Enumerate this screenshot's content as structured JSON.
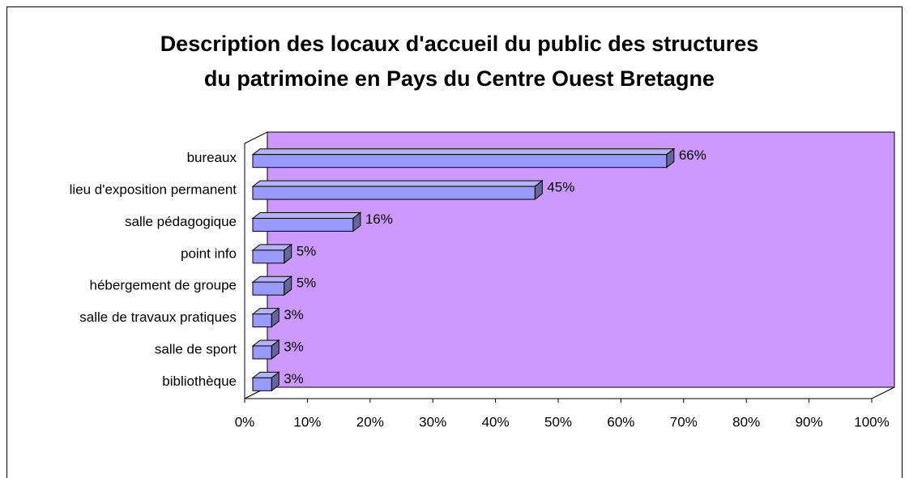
{
  "chart_data": {
    "type": "bar3d_horizontal",
    "title": [
      "Description des locaux d'accueil du public des structures",
      "du patrimoine en Pays du Centre Ouest Bretagne"
    ],
    "categories": [
      "bureaux",
      "lieu d'exposition permanent",
      "salle pédagogique",
      "point info",
      "hébergement de groupe",
      "salle de travaux pratiques",
      "salle de sport",
      "bibliothèque"
    ],
    "values": [
      66,
      45,
      16,
      5,
      5,
      3,
      3,
      3
    ],
    "value_labels": [
      "66%",
      "45%",
      "16%",
      "5%",
      "5%",
      "3%",
      "3%",
      "3%"
    ],
    "color": "#9999ff",
    "wall_color": "#cc99ff",
    "xlim": [
      0,
      100
    ],
    "xticks": [
      {
        "value": 0,
        "label": "0%"
      },
      {
        "value": 10,
        "label": "10%"
      },
      {
        "value": 20,
        "label": "20%"
      },
      {
        "value": 30,
        "label": "30%"
      },
      {
        "value": 40,
        "label": "40%"
      },
      {
        "value": 50,
        "label": "50%"
      },
      {
        "value": 60,
        "label": "60%"
      },
      {
        "value": 70,
        "label": "70%"
      },
      {
        "value": 80,
        "label": "80%"
      },
      {
        "value": 90,
        "label": "90%"
      },
      {
        "value": 100,
        "label": "100%"
      }
    ]
  }
}
